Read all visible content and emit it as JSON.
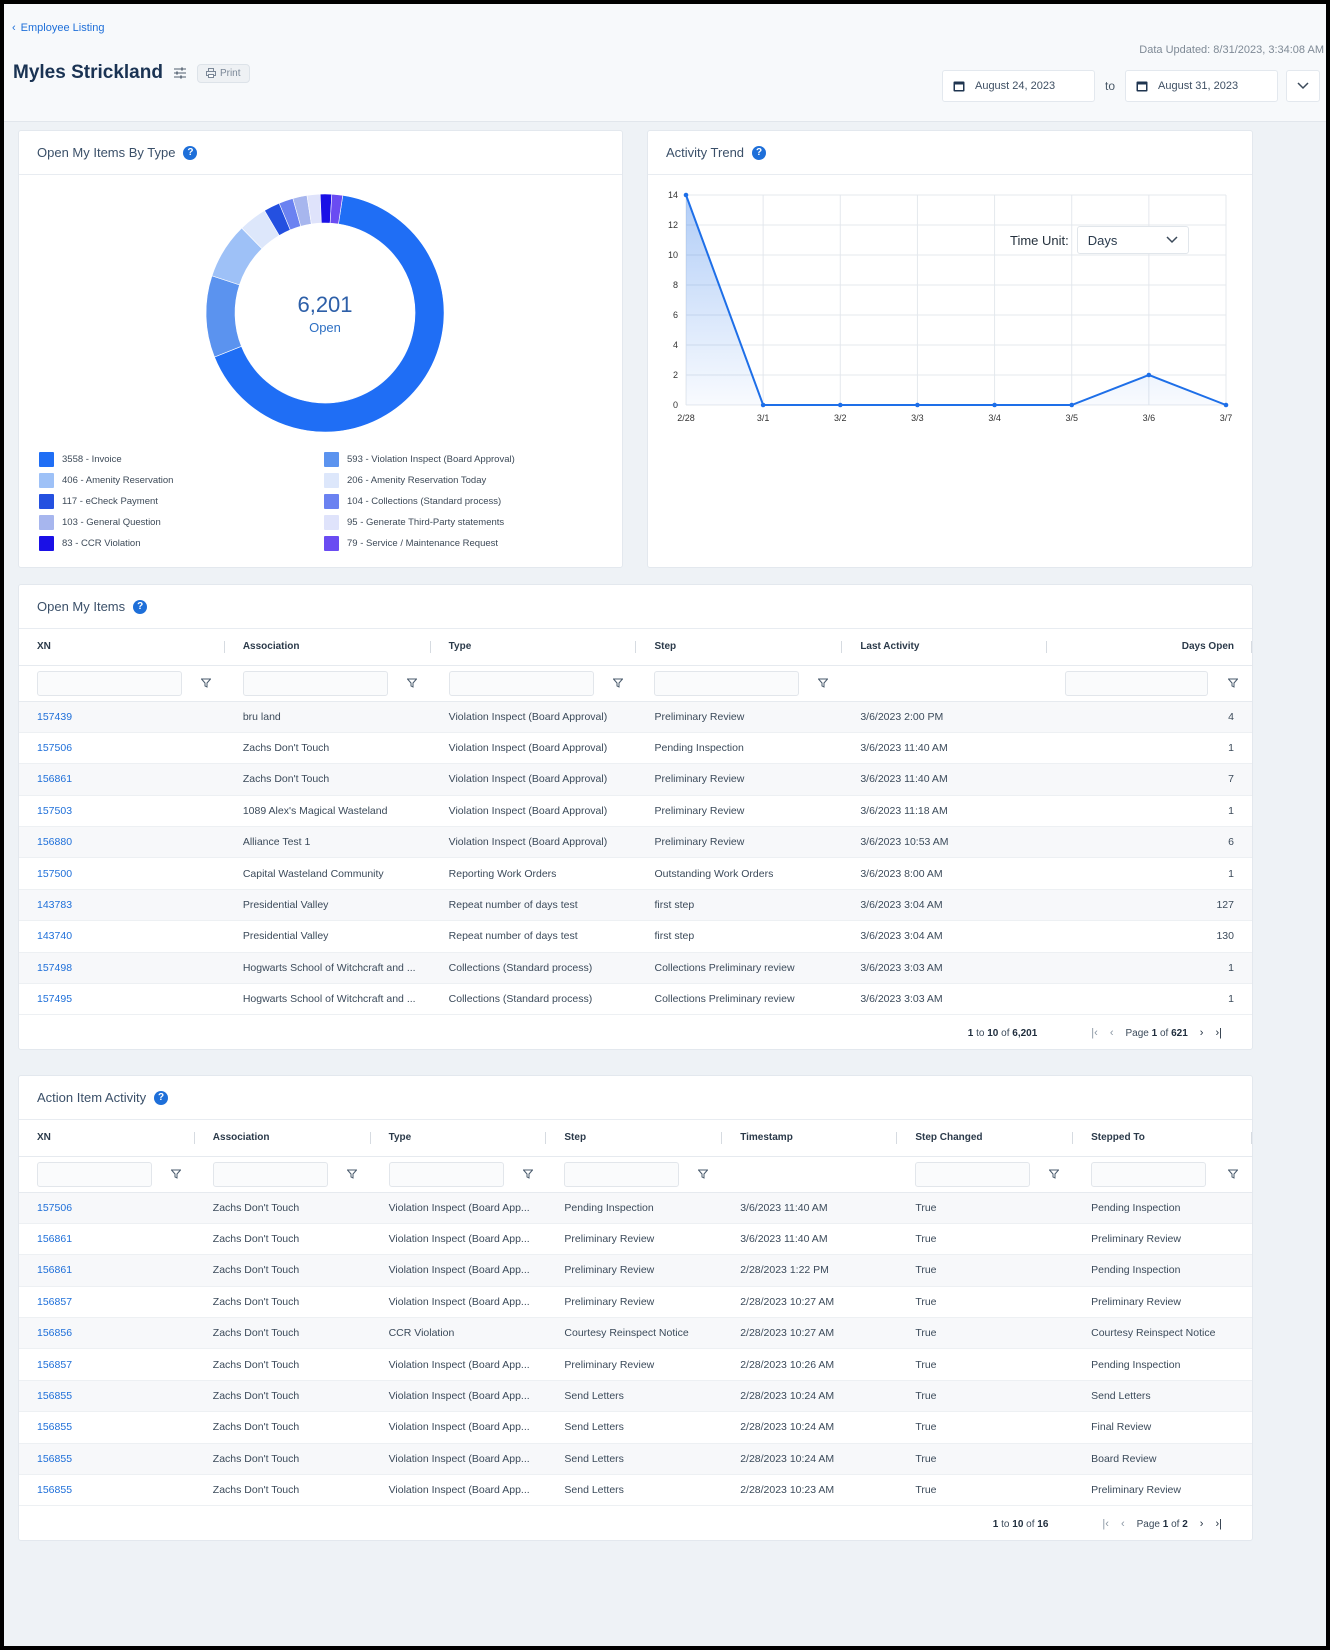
{
  "header": {
    "back_link": "Employee Listing",
    "employee_name": "Myles Strickland",
    "print_label": "Print",
    "data_updated": "Data Updated: 8/31/2023, 3:34:08 AM",
    "date_from": "August 24, 2023",
    "date_to_label": "to",
    "date_to": "August 31, 2023"
  },
  "open_by_type": {
    "title": "Open My Items By Type",
    "help": "?",
    "total": "6,201",
    "total_label": "Open",
    "legend_left": [
      {
        "label": "3558 - Invoice",
        "value": 3558,
        "color": "#1f6ef5"
      },
      {
        "label": "406 - Amenity Reservation",
        "value": 406,
        "color": "#9ec1f7"
      },
      {
        "label": "117 - eCheck Payment",
        "value": 117,
        "color": "#2450e0"
      },
      {
        "label": "103 - General Question",
        "value": 103,
        "color": "#a7b6ee"
      },
      {
        "label": "83 - CCR Violation",
        "value": 83,
        "color": "#1a10e6"
      }
    ],
    "legend_right": [
      {
        "label": "593 - Violation Inspect (Board Approval)",
        "value": 593,
        "color": "#5b93ef"
      },
      {
        "label": "206 - Amenity Reservation Today",
        "value": 206,
        "color": "#dde7fb"
      },
      {
        "label": "104 - Collections (Standard process)",
        "value": 104,
        "color": "#6b82f1"
      },
      {
        "label": "95 - Generate Third-Party statements",
        "value": 95,
        "color": "#dfe3fb"
      },
      {
        "label": "79 - Service / Maintenance Request",
        "value": 79,
        "color": "#6a4cf2"
      }
    ]
  },
  "activity_trend": {
    "title": "Activity Trend",
    "help": "?",
    "time_unit_label": "Time Unit:",
    "time_unit_value": "Days"
  },
  "chart_data": {
    "type": "area",
    "title": "",
    "xlabel": "",
    "ylabel": "",
    "categories": [
      "2/28",
      "3/1",
      "3/2",
      "3/3",
      "3/4",
      "3/5",
      "3/6",
      "3/7"
    ],
    "values": [
      14,
      0,
      0,
      0,
      0,
      0,
      2,
      0
    ],
    "ylim": [
      0,
      14
    ],
    "yticks": [
      0,
      2,
      4,
      6,
      8,
      10,
      12,
      14
    ],
    "grid": true,
    "color": "#1e6fe8"
  },
  "open_items": {
    "title": "Open My Items",
    "help": "?",
    "columns": [
      "XN",
      "Association",
      "Type",
      "Step",
      "Last Activity",
      "Days Open"
    ],
    "rows": [
      {
        "xn": "157439",
        "association": "bru land",
        "type": "Violation Inspect (Board Approval)",
        "step": "Preliminary Review",
        "last_activity": "3/6/2023 2:00 PM",
        "days_open": "4"
      },
      {
        "xn": "157506",
        "association": "Zachs Don't Touch",
        "type": "Violation Inspect (Board Approval)",
        "step": "Pending Inspection",
        "last_activity": "3/6/2023 11:40 AM",
        "days_open": "1"
      },
      {
        "xn": "156861",
        "association": "Zachs Don't Touch",
        "type": "Violation Inspect (Board Approval)",
        "step": "Preliminary Review",
        "last_activity": "3/6/2023 11:40 AM",
        "days_open": "7"
      },
      {
        "xn": "157503",
        "association": "1089 Alex's Magical Wasteland",
        "type": "Violation Inspect (Board Approval)",
        "step": "Preliminary Review",
        "last_activity": "3/6/2023 11:18 AM",
        "days_open": "1"
      },
      {
        "xn": "156880",
        "association": "Alliance Test 1",
        "type": "Violation Inspect (Board Approval)",
        "step": "Preliminary Review",
        "last_activity": "3/6/2023 10:53 AM",
        "days_open": "6"
      },
      {
        "xn": "157500",
        "association": "Capital Wasteland Community",
        "type": "Reporting Work Orders",
        "step": "Outstanding Work Orders",
        "last_activity": "3/6/2023 8:00 AM",
        "days_open": "1"
      },
      {
        "xn": "143783",
        "association": "Presidential Valley",
        "type": "Repeat number of days test",
        "step": "first step",
        "last_activity": "3/6/2023 3:04 AM",
        "days_open": "127"
      },
      {
        "xn": "143740",
        "association": "Presidential Valley",
        "type": "Repeat number of days test",
        "step": "first step",
        "last_activity": "3/6/2023 3:04 AM",
        "days_open": "130"
      },
      {
        "xn": "157498",
        "association": "Hogwarts School of Witchcraft and ...",
        "type": "Collections (Standard process)",
        "step": "Collections Preliminary review",
        "last_activity": "3/6/2023 3:03 AM",
        "days_open": "1"
      },
      {
        "xn": "157495",
        "association": "Hogwarts School of Witchcraft and ...",
        "type": "Collections (Standard process)",
        "step": "Collections Preliminary review",
        "last_activity": "3/6/2023 3:03 AM",
        "days_open": "1"
      }
    ],
    "pager": {
      "from": "1",
      "to_label": "to",
      "to": "10",
      "of_label": "of",
      "total": "6,201",
      "page_label": "Page",
      "page": "1",
      "pages": "621"
    }
  },
  "action_activity": {
    "title": "Action Item Activity",
    "help": "?",
    "columns": [
      "XN",
      "Association",
      "Type",
      "Step",
      "Timestamp",
      "Step Changed",
      "Stepped To"
    ],
    "rows": [
      {
        "xn": "157506",
        "association": "Zachs Don't Touch",
        "type": "Violation Inspect (Board App...",
        "step": "Pending Inspection",
        "timestamp": "3/6/2023 11:40 AM",
        "changed": "True",
        "stepped_to": "Pending Inspection"
      },
      {
        "xn": "156861",
        "association": "Zachs Don't Touch",
        "type": "Violation Inspect (Board App...",
        "step": "Preliminary Review",
        "timestamp": "3/6/2023 11:40 AM",
        "changed": "True",
        "stepped_to": "Preliminary Review"
      },
      {
        "xn": "156861",
        "association": "Zachs Don't Touch",
        "type": "Violation Inspect (Board App...",
        "step": "Preliminary Review",
        "timestamp": "2/28/2023 1:22 PM",
        "changed": "True",
        "stepped_to": "Pending Inspection"
      },
      {
        "xn": "156857",
        "association": "Zachs Don't Touch",
        "type": "Violation Inspect (Board App...",
        "step": "Preliminary Review",
        "timestamp": "2/28/2023 10:27 AM",
        "changed": "True",
        "stepped_to": "Preliminary Review"
      },
      {
        "xn": "156856",
        "association": "Zachs Don't Touch",
        "type": "CCR Violation",
        "step": "Courtesy Reinspect Notice",
        "timestamp": "2/28/2023 10:27 AM",
        "changed": "True",
        "stepped_to": "Courtesy Reinspect Notice"
      },
      {
        "xn": "156857",
        "association": "Zachs Don't Touch",
        "type": "Violation Inspect (Board App...",
        "step": "Preliminary Review",
        "timestamp": "2/28/2023 10:26 AM",
        "changed": "True",
        "stepped_to": "Pending Inspection"
      },
      {
        "xn": "156855",
        "association": "Zachs Don't Touch",
        "type": "Violation Inspect (Board App...",
        "step": "Send Letters",
        "timestamp": "2/28/2023 10:24 AM",
        "changed": "True",
        "stepped_to": "Send Letters"
      },
      {
        "xn": "156855",
        "association": "Zachs Don't Touch",
        "type": "Violation Inspect (Board App...",
        "step": "Send Letters",
        "timestamp": "2/28/2023 10:24 AM",
        "changed": "True",
        "stepped_to": "Final Review"
      },
      {
        "xn": "156855",
        "association": "Zachs Don't Touch",
        "type": "Violation Inspect (Board App...",
        "step": "Send Letters",
        "timestamp": "2/28/2023 10:24 AM",
        "changed": "True",
        "stepped_to": "Board Review"
      },
      {
        "xn": "156855",
        "association": "Zachs Don't Touch",
        "type": "Violation Inspect (Board App...",
        "step": "Send Letters",
        "timestamp": "2/28/2023 10:23 AM",
        "changed": "True",
        "stepped_to": "Preliminary Review"
      }
    ],
    "pager": {
      "from": "1",
      "to_label": "to",
      "to": "10",
      "of_label": "of",
      "total": "16",
      "page_label": "Page",
      "page": "1",
      "pages": "2"
    }
  }
}
